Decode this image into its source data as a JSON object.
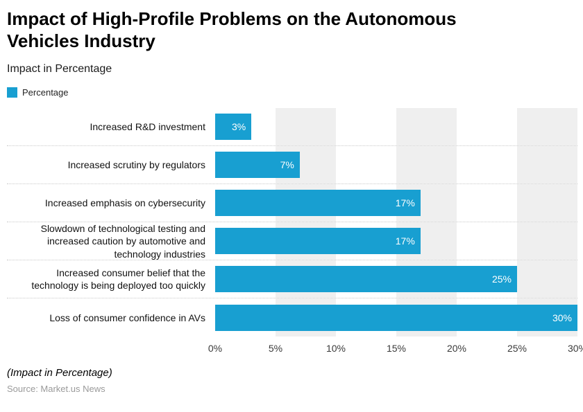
{
  "header": {
    "title": "Impact of High-Profile Problems on the Autonomous Vehicles Industry",
    "subtitle": "Impact in Percentage"
  },
  "legend": {
    "label": "Percentage"
  },
  "chart_data": {
    "type": "bar",
    "orientation": "horizontal",
    "title": "Impact of High-Profile Problems on the Autonomous Vehicles Industry",
    "xlabel": "Impact in Percentage",
    "ylabel": "",
    "xlim": [
      0,
      30
    ],
    "x_ticks": [
      "0%",
      "5%",
      "10%",
      "15%",
      "20%",
      "25%",
      "30%"
    ],
    "grid": "vertical-bands-alternating",
    "legend_position": "top-left",
    "bar_color": "#189FD1",
    "band_color": "#EFEFEF",
    "categories": [
      "Increased R&D investment",
      "Increased scrutiny by regulators",
      "Increased emphasis on cybersecurity",
      "Slowdown of technological testing and increased caution by automotive and technology industries",
      "Increased consumer belief that the technology is being deployed too quickly",
      "Loss of consumer confidence in AVs"
    ],
    "values": [
      3,
      7,
      17,
      17,
      25,
      30
    ],
    "value_labels": [
      "3%",
      "7%",
      "17%",
      "17%",
      "25%",
      "30%"
    ]
  },
  "footer": {
    "note": "(Impact in Percentage)",
    "source": "Source: Market.us News"
  }
}
